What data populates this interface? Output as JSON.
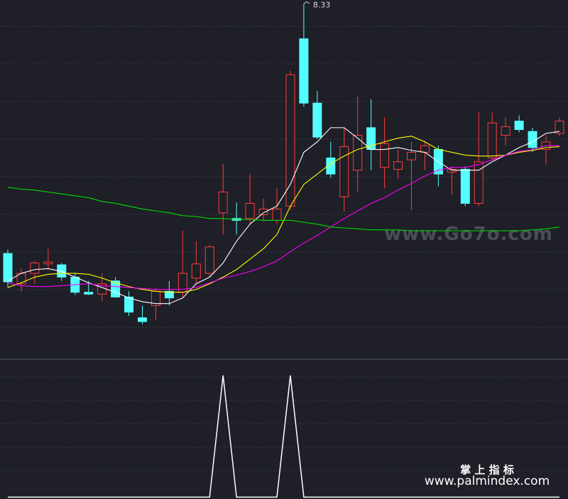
{
  "chart_data": [
    {
      "type": "candlestick",
      "ylim": [
        4.58,
        8.37
      ],
      "up_color": "#ff3b3b",
      "down_color": "#54ffff",
      "open": [
        5.69,
        5.37,
        5.48,
        5.58,
        5.57,
        5.44,
        5.28,
        5.26,
        5.4,
        5.23,
        5.01,
        5.14,
        5.29,
        5.28,
        5.43,
        5.48,
        6.12,
        6.06,
        6.06,
        6.1,
        6.04,
        6.19,
        7.96,
        7.28,
        6.7,
        6.29,
        6.57,
        7.02,
        6.6,
        6.58,
        6.68,
        6.76,
        6.79,
        6.55,
        6.58,
        6.22,
        6.7,
        6.94,
        7.09,
        6.98,
        6.79,
        6.96
      ],
      "high": [
        5.73,
        5.53,
        5.61,
        5.74,
        5.59,
        5.48,
        5.4,
        5.48,
        5.44,
        5.29,
        5.14,
        5.33,
        5.4,
        5.93,
        5.82,
        5.78,
        6.64,
        6.23,
        6.53,
        6.27,
        6.38,
        7.62,
        8.33,
        7.41,
        6.87,
        7.02,
        7.35,
        7.32,
        7.13,
        6.79,
        6.87,
        6.88,
        6.83,
        6.61,
        6.61,
        7.19,
        7.18,
        7.13,
        7.15,
        7.02,
        6.94,
        7.13
      ],
      "low": [
        5.33,
        5.29,
        5.37,
        5.52,
        5.4,
        5.25,
        5.25,
        5.18,
        5.22,
        5.03,
        4.94,
        4.99,
        5.14,
        5.22,
        5.37,
        5.44,
        5.89,
        5.89,
        6.0,
        6.03,
        6.0,
        6.15,
        7.24,
        6.9,
        6.49,
        6.13,
        6.34,
        6.57,
        6.38,
        6.48,
        6.15,
        6.57,
        6.4,
        6.31,
        6.19,
        6.19,
        6.68,
        6.83,
        6.97,
        6.76,
        6.63,
        6.93
      ],
      "close": [
        5.39,
        5.48,
        5.59,
        5.6,
        5.44,
        5.28,
        5.26,
        5.37,
        5.23,
        5.07,
        4.97,
        5.29,
        5.22,
        5.48,
        5.58,
        5.76,
        6.34,
        6.04,
        6.22,
        6.16,
        6.16,
        7.58,
        7.28,
        6.92,
        6.53,
        6.82,
        6.94,
        6.79,
        6.85,
        6.66,
        6.76,
        6.83,
        6.53,
        6.58,
        6.22,
        6.66,
        7.07,
        7.03,
        7.0,
        6.81,
        6.87,
        7.09
      ],
      "series": [
        {
          "color": "#ffffff",
          "values": [
            5.4,
            5.48,
            5.52,
            5.53,
            5.5,
            5.44,
            5.38,
            5.33,
            5.28,
            5.22,
            5.18,
            5.16,
            5.16,
            5.22,
            5.37,
            5.44,
            5.59,
            5.82,
            6.0,
            6.12,
            6.19,
            6.42,
            6.76,
            6.87,
            7.02,
            7.02,
            6.91,
            6.79,
            6.79,
            6.81,
            6.78,
            6.76,
            6.66,
            6.57,
            6.57,
            6.57,
            6.66,
            6.73,
            6.81,
            6.87,
            6.96,
            6.98
          ]
        },
        {
          "color": "#ffff00",
          "values": [
            5.33,
            5.38,
            5.44,
            5.47,
            5.48,
            5.48,
            5.47,
            5.43,
            5.38,
            5.34,
            5.31,
            5.29,
            5.28,
            5.28,
            5.31,
            5.37,
            5.44,
            5.52,
            5.63,
            5.74,
            5.89,
            6.19,
            6.42,
            6.53,
            6.64,
            6.72,
            6.79,
            6.83,
            6.87,
            6.91,
            6.93,
            6.87,
            6.79,
            6.76,
            6.73,
            6.72,
            6.72,
            6.73,
            6.76,
            6.78,
            6.81,
            6.82
          ]
        },
        {
          "color": "#ff00ff",
          "values": [
            5.38,
            5.35,
            5.34,
            5.34,
            5.35,
            5.36,
            5.37,
            5.35,
            5.34,
            5.33,
            5.32,
            5.31,
            5.31,
            5.31,
            5.33,
            5.38,
            5.43,
            5.46,
            5.5,
            5.55,
            5.61,
            5.71,
            5.8,
            5.88,
            5.97,
            6.06,
            6.14,
            6.22,
            6.28,
            6.36,
            6.43,
            6.51,
            6.57,
            6.6,
            6.6,
            6.63,
            6.68,
            6.73,
            6.77,
            6.79,
            6.83,
            6.83
          ]
        },
        {
          "color": "#00dd00",
          "values": [
            6.39,
            6.37,
            6.36,
            6.34,
            6.32,
            6.3,
            6.28,
            6.24,
            6.22,
            6.19,
            6.16,
            6.14,
            6.12,
            6.09,
            6.08,
            6.06,
            6.06,
            6.05,
            6.05,
            6.04,
            6.04,
            6.04,
            6.02,
            6.0,
            5.97,
            5.96,
            5.95,
            5.94,
            5.94,
            5.94,
            5.93,
            5.93,
            5.93,
            5.93,
            5.93,
            5.93,
            5.93,
            5.93,
            5.93,
            5.94,
            5.95,
            5.97
          ]
        }
      ]
    },
    {
      "type": "line",
      "ylim": [
        -0.015,
        1.14
      ],
      "color": "#ffffff",
      "values": [
        0,
        0,
        0,
        0,
        0,
        0,
        0,
        0,
        0,
        0,
        0,
        0,
        0,
        0,
        0,
        0,
        1,
        0,
        0,
        0,
        0,
        1,
        0,
        0,
        0,
        0,
        0,
        0,
        0,
        0,
        0,
        0,
        0,
        0,
        0,
        0,
        0,
        0,
        0,
        0,
        0,
        0
      ]
    }
  ],
  "watermarks": {
    "site": "www.Go7o.com",
    "brand": "掌 上 指 标",
    "url": "www.palmindex.com"
  }
}
